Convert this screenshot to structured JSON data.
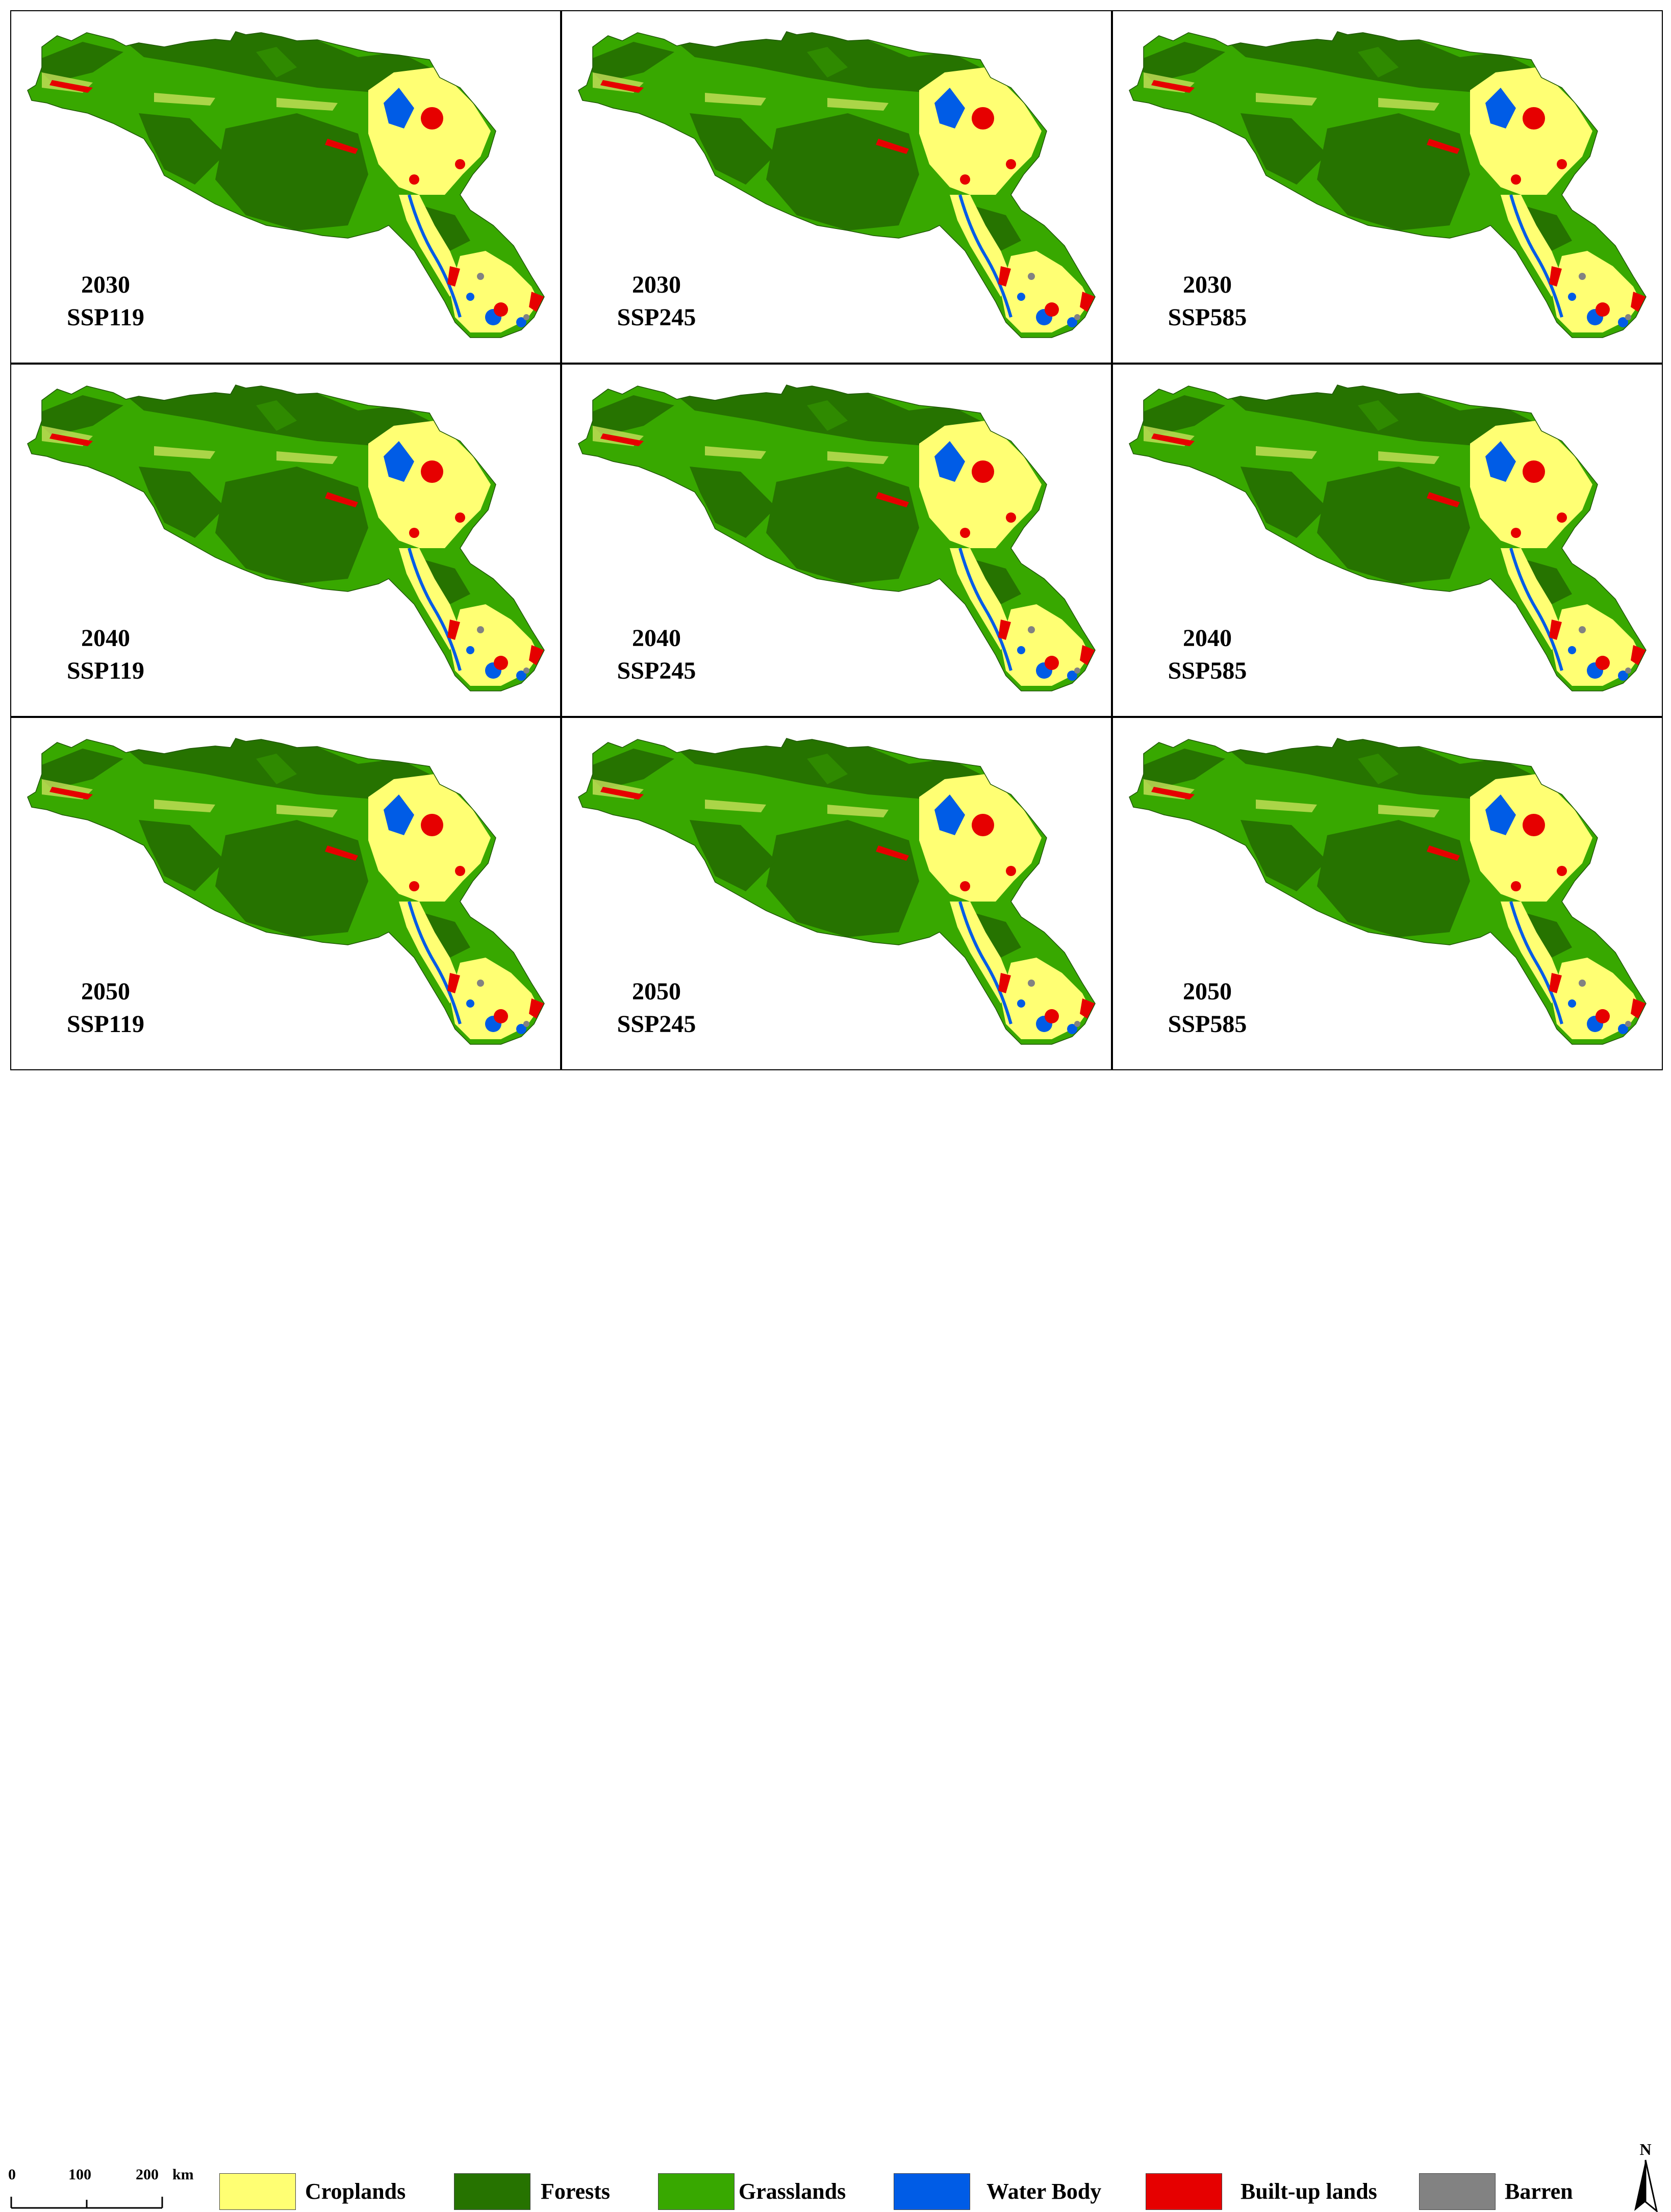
{
  "colors": {
    "croplands": "#ffff73",
    "forests": "#267300",
    "grasslands": "#38a800",
    "water_body": "#005ce6",
    "built_up_lands": "#e60000",
    "barren": "#828282"
  },
  "panels": [
    {
      "year": "2030",
      "scenario": "SSP119"
    },
    {
      "year": "2030",
      "scenario": "SSP245"
    },
    {
      "year": "2030",
      "scenario": "SSP585"
    },
    {
      "year": "2040",
      "scenario": "SSP119"
    },
    {
      "year": "2040",
      "scenario": "SSP245"
    },
    {
      "year": "2040",
      "scenario": "SSP585"
    },
    {
      "year": "2050",
      "scenario": "SSP119"
    },
    {
      "year": "2050",
      "scenario": "SSP245"
    },
    {
      "year": "2050",
      "scenario": "SSP585"
    }
  ],
  "legend": [
    {
      "label": "Croplands",
      "color": "#ffff73"
    },
    {
      "label": "Forests",
      "color": "#267300"
    },
    {
      "label": "Grasslands",
      "color": "#38a800"
    },
    {
      "label": "Water Body",
      "color": "#005ce6"
    },
    {
      "label": "Built-up lands",
      "color": "#e60000"
    },
    {
      "label": "Barren",
      "color": "#828282"
    }
  ],
  "scale_bar": {
    "ticks": [
      "0",
      "100",
      "200"
    ],
    "unit": "km"
  },
  "north_arrow": {
    "label": "N"
  }
}
